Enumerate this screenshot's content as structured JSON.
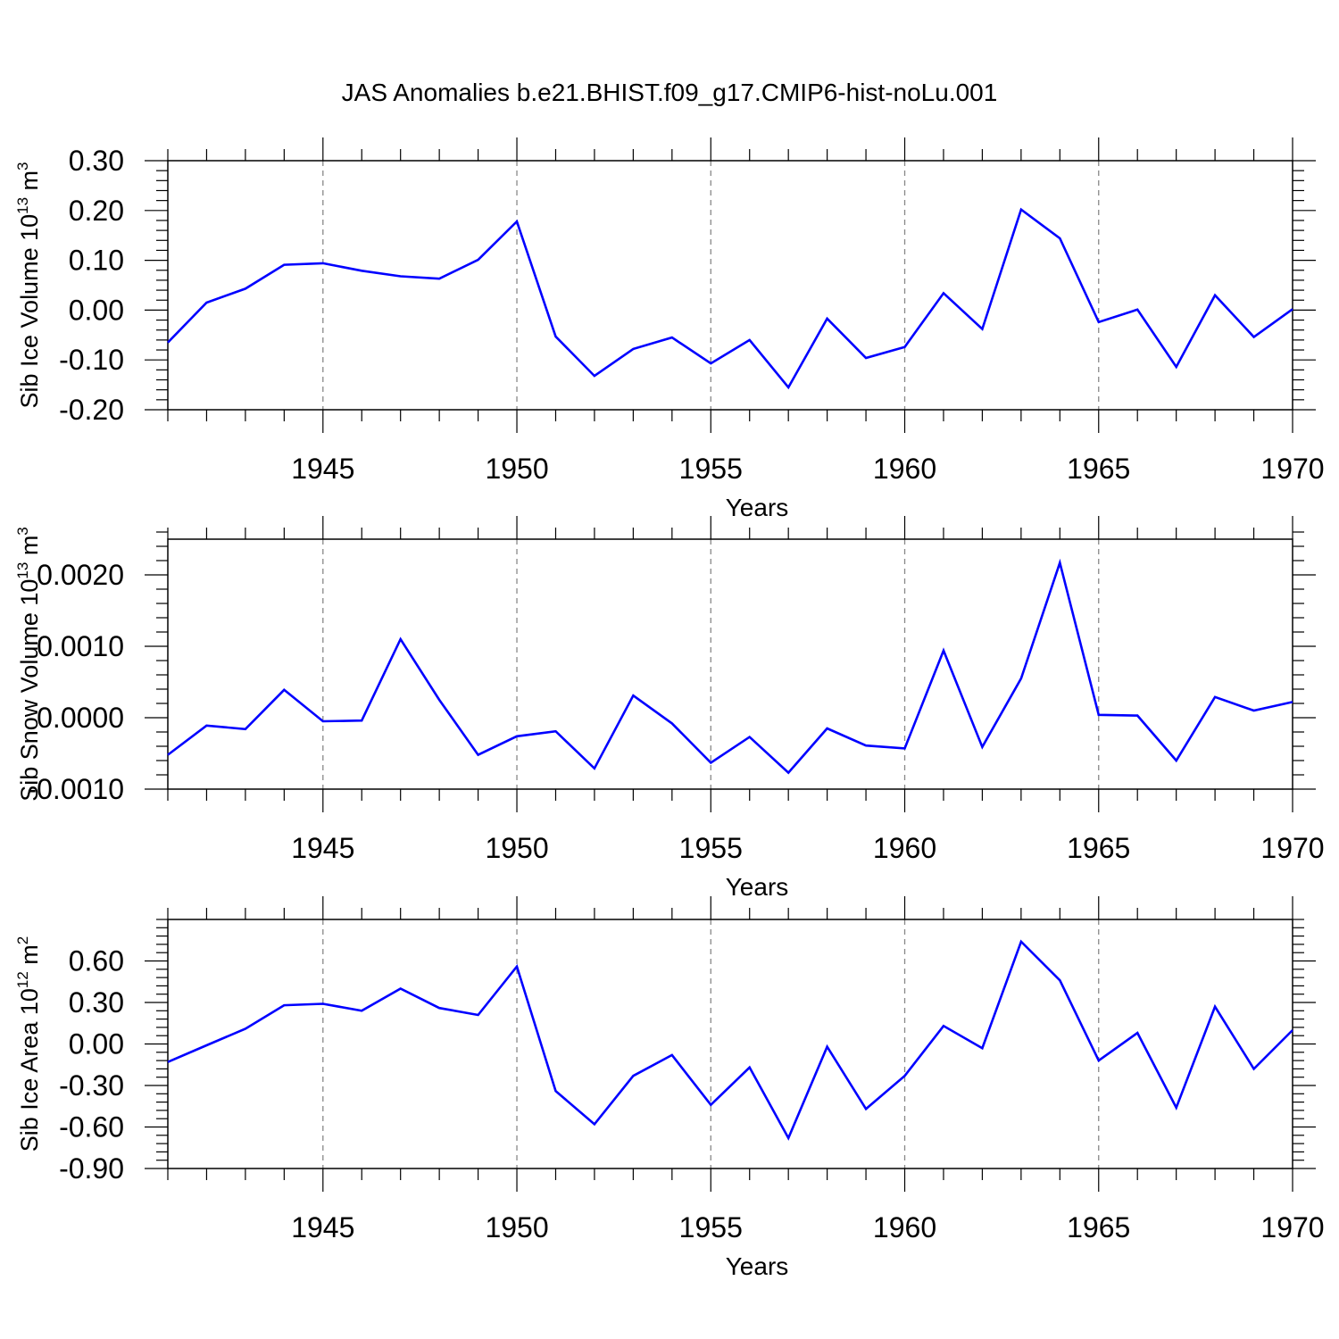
{
  "title": "JAS Anomalies b.e21.BHIST.f09_g17.CMIP6-hist-noLu.001",
  "chart_data": [
    {
      "type": "line",
      "ylabel_main": "Sib Ice Volume 10",
      "ylabel_sup": "13",
      "ylabel_unit": " m",
      "ylabel_unit_sup": "3",
      "xlabel": "Years",
      "xlim": [
        1941,
        1970
      ],
      "ylim": [
        -0.2,
        0.3
      ],
      "yticks": [
        -0.2,
        -0.1,
        0.0,
        0.1,
        0.2,
        0.3
      ],
      "ytick_labels": [
        "-0.20",
        "-0.10",
        "0.00",
        "0.10",
        "0.20",
        "0.30"
      ],
      "xticks": [
        1945,
        1950,
        1955,
        1960,
        1965,
        1970
      ],
      "xtick_labels": [
        "1945",
        "1950",
        "1955",
        "1960",
        "1965",
        "1970"
      ],
      "series": [
        {
          "name": "Sib Ice Volume",
          "color": "#0000ff",
          "x": [
            1941,
            1942,
            1943,
            1944,
            1945,
            1946,
            1947,
            1948,
            1949,
            1950,
            1951,
            1952,
            1953,
            1954,
            1955,
            1956,
            1957,
            1958,
            1959,
            1960,
            1961,
            1962,
            1963,
            1964,
            1965,
            1966,
            1967,
            1968,
            1969,
            1970
          ],
          "values": [
            -0.065,
            0.015,
            0.043,
            0.091,
            0.094,
            0.079,
            0.068,
            0.063,
            0.101,
            0.178,
            -0.053,
            -0.132,
            -0.078,
            -0.055,
            -0.107,
            -0.06,
            -0.155,
            -0.017,
            -0.096,
            -0.074,
            0.034,
            -0.038,
            0.202,
            0.144,
            -0.024,
            0.001,
            -0.114,
            0.03,
            -0.054,
            0.002
          ]
        }
      ]
    },
    {
      "type": "line",
      "ylabel_main": "Sib Snow Volume 10",
      "ylabel_sup": "13",
      "ylabel_unit": " m",
      "ylabel_unit_sup": "3",
      "xlabel": "Years",
      "xlim": [
        1941,
        1970
      ],
      "ylim": [
        -0.001,
        0.0025
      ],
      "yticks": [
        -0.001,
        0.0,
        0.001,
        0.002
      ],
      "ytick_labels": [
        "-0.0010",
        "0.0000",
        "0.0010",
        "0.0020"
      ],
      "xticks": [
        1945,
        1950,
        1955,
        1960,
        1965,
        1970
      ],
      "xtick_labels": [
        "1945",
        "1950",
        "1955",
        "1960",
        "1965",
        "1970"
      ],
      "series": [
        {
          "name": "Sib Snow Volume",
          "color": "#0000ff",
          "x": [
            1941,
            1942,
            1943,
            1944,
            1945,
            1946,
            1947,
            1948,
            1949,
            1950,
            1951,
            1952,
            1953,
            1954,
            1955,
            1956,
            1957,
            1958,
            1959,
            1960,
            1961,
            1962,
            1963,
            1964,
            1965,
            1966,
            1967,
            1968,
            1969,
            1970
          ],
          "values": [
            -0.00052,
            -0.00011,
            -0.00016,
            0.00039,
            -5e-05,
            -4e-05,
            0.0011,
            0.00025,
            -0.00052,
            -0.00026,
            -0.00019,
            -0.00071,
            0.00031,
            -8e-05,
            -0.00063,
            -0.00027,
            -0.00077,
            -0.00015,
            -0.00039,
            -0.00043,
            0.00094,
            -0.00041,
            0.00055,
            0.00217,
            4e-05,
            3e-05,
            -0.0006,
            0.00029,
            0.0001,
            0.00022
          ]
        }
      ]
    },
    {
      "type": "line",
      "ylabel_main": "Sib Ice Area 10",
      "ylabel_sup": "12",
      "ylabel_unit": " m",
      "ylabel_unit_sup": "2",
      "xlabel": "Years",
      "xlim": [
        1941,
        1970
      ],
      "ylim": [
        -0.9,
        0.9
      ],
      "yticks": [
        -0.9,
        -0.6,
        -0.3,
        0.0,
        0.3,
        0.6
      ],
      "ytick_labels": [
        "-0.90",
        "-0.60",
        "-0.30",
        "0.00",
        "0.30",
        "0.60"
      ],
      "xticks": [
        1945,
        1950,
        1955,
        1960,
        1965,
        1970
      ],
      "xtick_labels": [
        "1945",
        "1950",
        "1955",
        "1960",
        "1965",
        "1970"
      ],
      "series": [
        {
          "name": "Sib Ice Area",
          "color": "#0000ff",
          "x": [
            1941,
            1942,
            1943,
            1944,
            1945,
            1946,
            1947,
            1948,
            1949,
            1950,
            1951,
            1952,
            1953,
            1954,
            1955,
            1956,
            1957,
            1958,
            1959,
            1960,
            1961,
            1962,
            1963,
            1964,
            1965,
            1966,
            1967,
            1968,
            1969,
            1970
          ],
          "values": [
            -0.13,
            -0.01,
            0.11,
            0.28,
            0.29,
            0.24,
            0.4,
            0.26,
            0.21,
            0.56,
            -0.34,
            -0.58,
            -0.23,
            -0.08,
            -0.44,
            -0.17,
            -0.68,
            -0.02,
            -0.47,
            -0.23,
            0.13,
            -0.03,
            0.74,
            0.46,
            -0.12,
            0.08,
            -0.46,
            0.27,
            -0.18,
            0.1
          ]
        }
      ]
    }
  ]
}
